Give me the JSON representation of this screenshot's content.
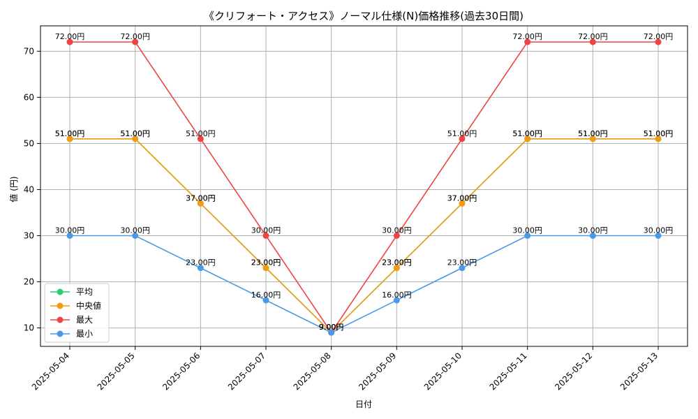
{
  "chart_data": {
    "type": "line",
    "title": "《クリフォート・アクセス》ノーマル仕様(N)価格推移(過去30日間)",
    "xlabel": "日付",
    "ylabel": "値 (円)",
    "categories": [
      "2025-05-04",
      "2025-05-05",
      "2025-05-06",
      "2025-05-07",
      "2025-05-08",
      "2025-05-09",
      "2025-05-10",
      "2025-05-11",
      "2025-05-12",
      "2025-05-13"
    ],
    "ylim": [
      6,
      75.5
    ],
    "yticks": [
      10,
      20,
      30,
      40,
      50,
      60,
      70
    ],
    "grid": true,
    "legend_position": "lower-left",
    "value_suffix": "円",
    "series": [
      {
        "name": "平均",
        "color": "#2ecc71",
        "values": [
          51,
          51,
          37,
          23,
          9,
          23,
          37,
          51,
          51,
          51
        ]
      },
      {
        "name": "中央値",
        "color": "#f39c12",
        "values": [
          51,
          51,
          37,
          23,
          9,
          23,
          37,
          51,
          51,
          51
        ]
      },
      {
        "name": "最大",
        "color": "#ef4444",
        "values": [
          72,
          72,
          51,
          30,
          9,
          30,
          51,
          72,
          72,
          72
        ]
      },
      {
        "name": "最小",
        "color": "#4a98e8",
        "values": [
          30,
          30,
          23,
          16,
          9,
          16,
          23,
          30,
          30,
          30
        ]
      }
    ]
  }
}
